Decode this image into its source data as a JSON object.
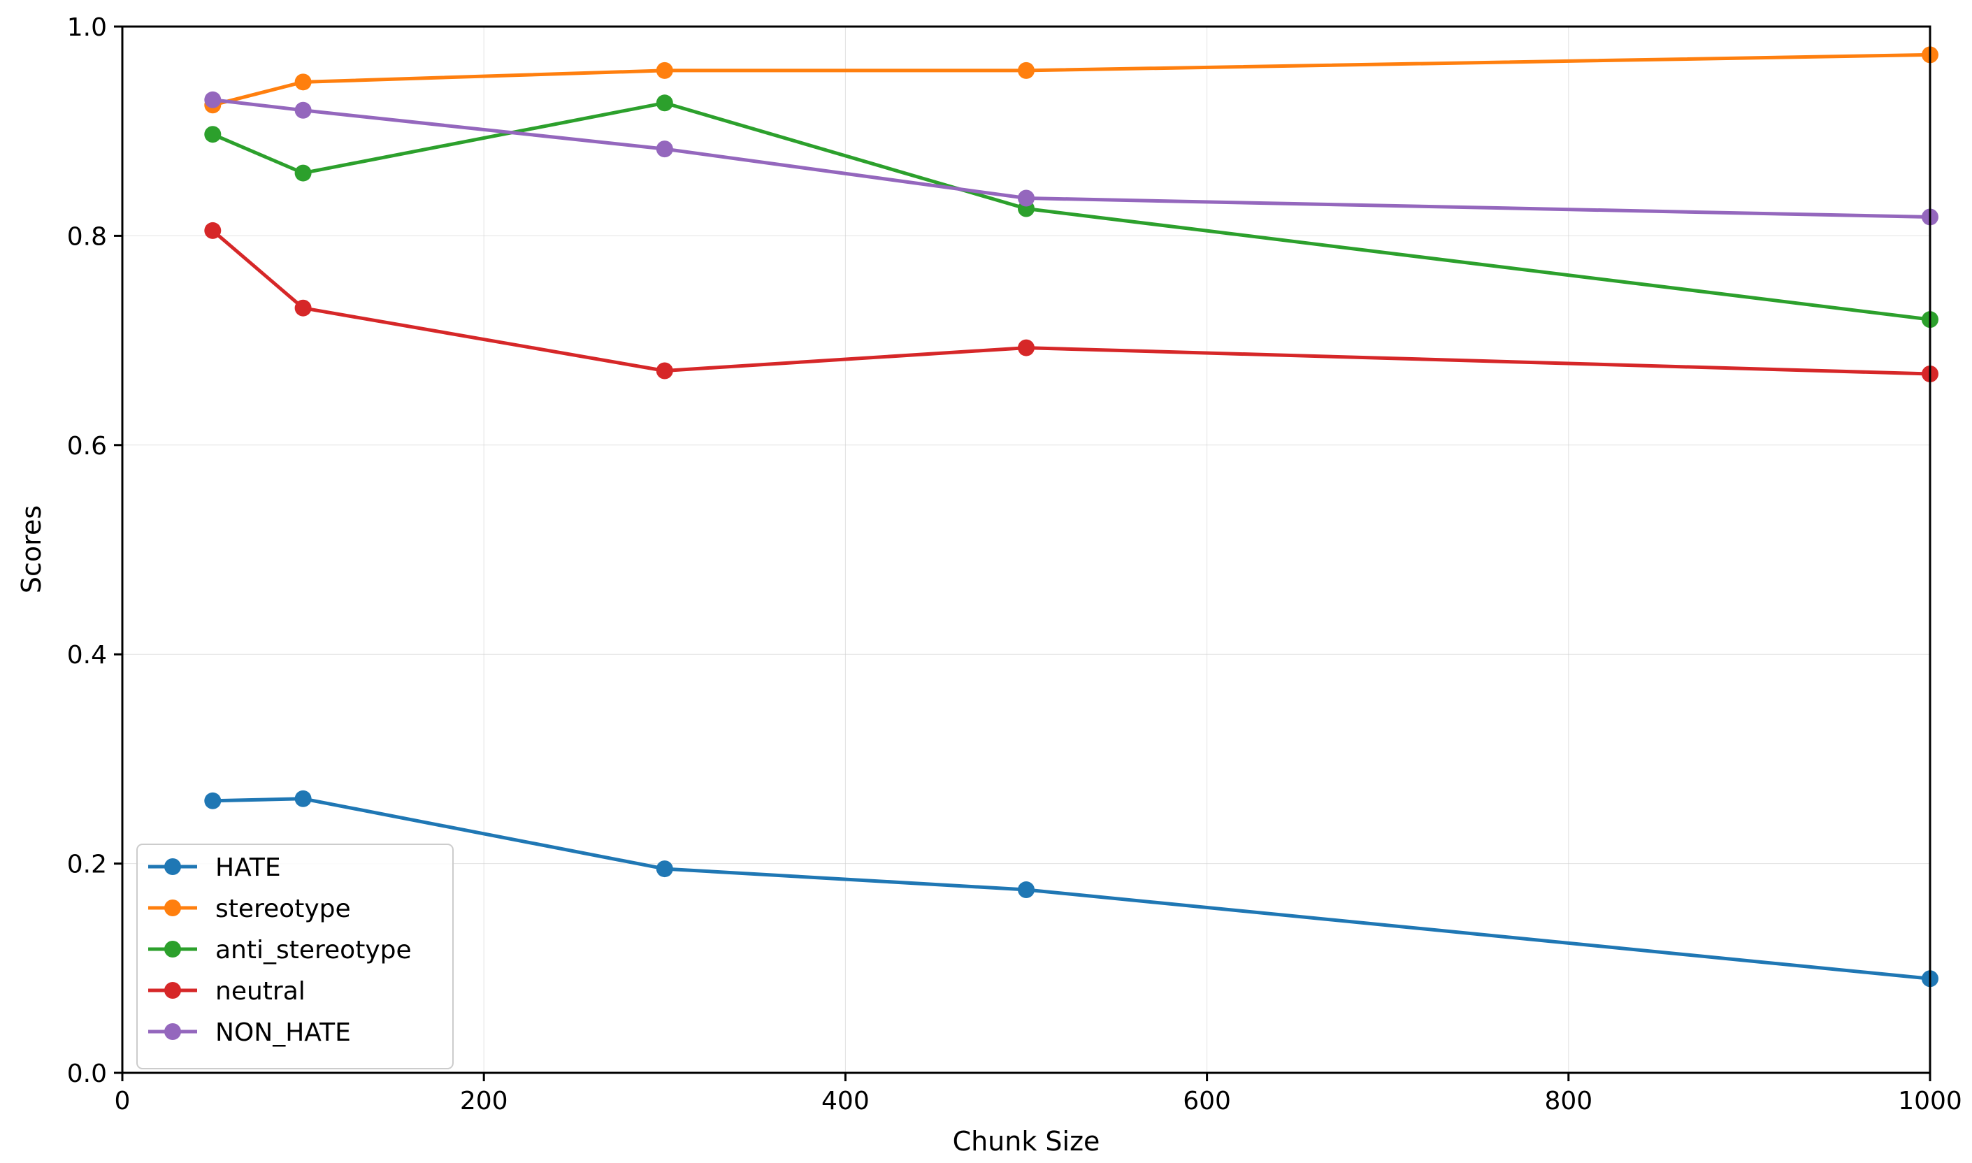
{
  "chart_data": {
    "type": "line",
    "title": "",
    "xlabel": "Chunk Size",
    "ylabel": "Scores",
    "xlim": [
      0,
      1000
    ],
    "ylim": [
      0.0,
      1.0
    ],
    "x_ticks": [
      0,
      200,
      400,
      600,
      800,
      1000
    ],
    "x_tick_labels": [
      "0",
      "200",
      "400",
      "600",
      "800",
      "1000"
    ],
    "y_ticks": [
      0.0,
      0.2,
      0.4,
      0.6,
      0.8,
      1.0
    ],
    "y_tick_labels": [
      "0.0",
      "0.2",
      "0.4",
      "0.6",
      "0.8",
      "1.0"
    ],
    "grid": true,
    "legend_position": "lower-left",
    "x": [
      50,
      100,
      300,
      500,
      1000
    ],
    "series": [
      {
        "name": "HATE",
        "color": "#1f77b4",
        "values": [
          0.26,
          0.262,
          0.195,
          0.175,
          0.09
        ]
      },
      {
        "name": "stereotype",
        "color": "#ff7f0e",
        "values": [
          0.925,
          0.947,
          0.958,
          0.958,
          0.973
        ]
      },
      {
        "name": "anti_stereotype",
        "color": "#2ca02c",
        "values": [
          0.897,
          0.86,
          0.927,
          0.826,
          0.72
        ]
      },
      {
        "name": "neutral",
        "color": "#d62728",
        "values": [
          0.805,
          0.731,
          0.671,
          0.693,
          0.668
        ]
      },
      {
        "name": "NON_HATE",
        "color": "#9467bd",
        "values": [
          0.93,
          0.92,
          0.883,
          0.836,
          0.818
        ]
      }
    ]
  }
}
